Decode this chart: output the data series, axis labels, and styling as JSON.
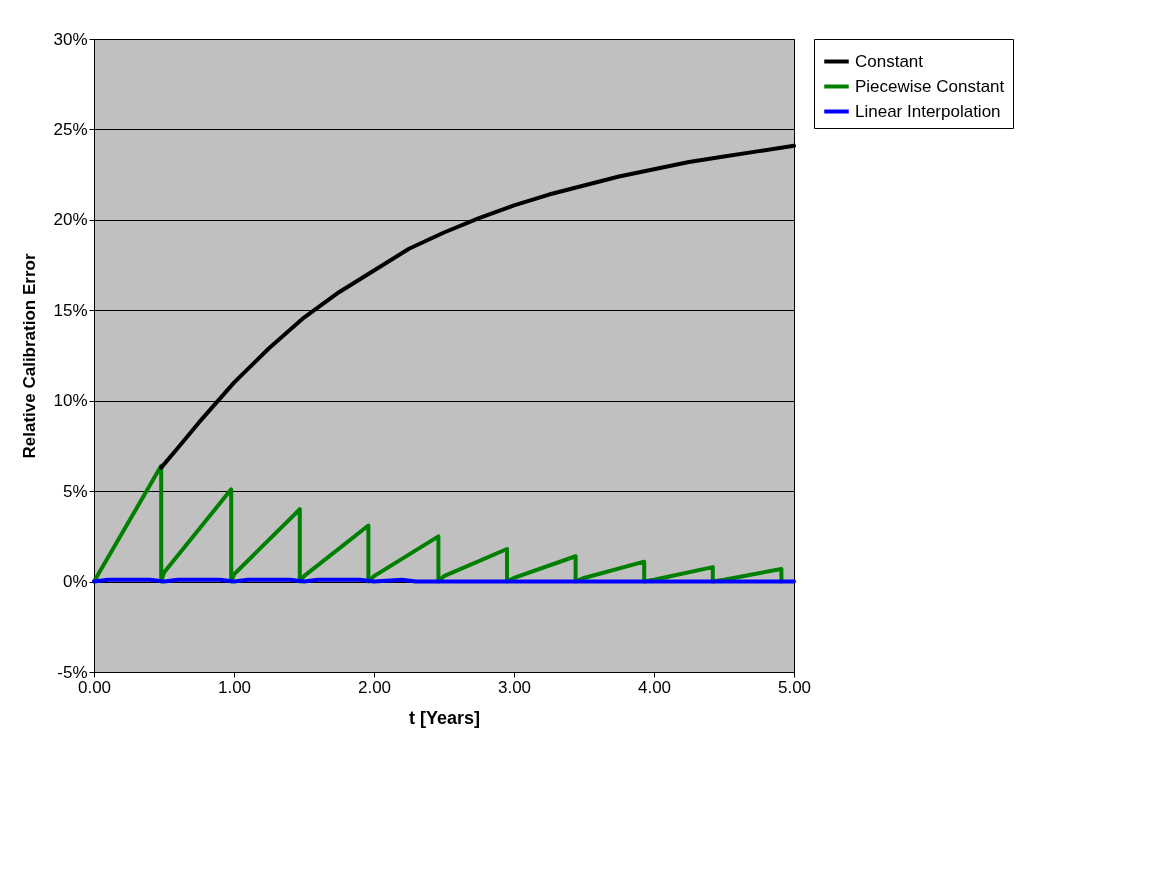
{
  "chart_data": {
    "type": "line",
    "xlabel": "t [Years]",
    "ylabel": "Relative Calibration Error",
    "xlim": [
      0,
      5
    ],
    "xticks": [
      {
        "value": 0,
        "label": "0.00"
      },
      {
        "value": 1,
        "label": "1.00"
      },
      {
        "value": 2,
        "label": "2.00"
      },
      {
        "value": 3,
        "label": "3.00"
      },
      {
        "value": 4,
        "label": "4.00"
      },
      {
        "value": 5,
        "label": "5.00"
      }
    ],
    "ylim": [
      -5,
      30
    ],
    "yticks": [
      {
        "value": -5,
        "label": "-5%"
      },
      {
        "value": 0,
        "label": "0%"
      },
      {
        "value": 5,
        "label": "5%"
      },
      {
        "value": 10,
        "label": "10%"
      },
      {
        "value": 15,
        "label": "15%"
      },
      {
        "value": 20,
        "label": "20%"
      },
      {
        "value": 25,
        "label": "25%"
      },
      {
        "value": 30,
        "label": "30%"
      }
    ],
    "grid": "y",
    "legend": "right",
    "line_style": "solid",
    "marker": "none",
    "series": [
      {
        "name": "Constant",
        "color": "#000000",
        "x": [
          0.48,
          0.6,
          0.75,
          1.0,
          1.25,
          1.5,
          1.75,
          2.0,
          2.25,
          2.5,
          2.75,
          3.0,
          3.25,
          3.5,
          3.75,
          4.0,
          4.25,
          4.5,
          4.75,
          5.0
        ],
        "values": [
          6.3,
          7.4,
          8.8,
          11.0,
          12.9,
          14.6,
          16.0,
          17.2,
          18.4,
          19.3,
          20.1,
          20.8,
          21.4,
          21.9,
          22.4,
          22.8,
          23.2,
          23.5,
          23.8,
          24.1
        ]
      },
      {
        "name": "Piecewise Constant",
        "color": "#008000",
        "x": [
          0.0,
          0.48,
          0.48,
          0.5,
          0.98,
          0.98,
          1.0,
          1.47,
          1.47,
          1.5,
          1.96,
          1.96,
          2.0,
          2.46,
          2.46,
          2.5,
          2.95,
          2.95,
          3.0,
          3.44,
          3.44,
          3.5,
          3.93,
          3.93,
          4.0,
          4.42,
          4.42,
          4.5,
          4.91,
          4.91
        ],
        "values": [
          0.0,
          6.4,
          0.0,
          0.5,
          5.1,
          0.0,
          0.4,
          4.0,
          0.0,
          0.3,
          3.1,
          0.0,
          0.3,
          2.5,
          0.0,
          0.3,
          1.8,
          0.0,
          0.2,
          1.4,
          0.0,
          0.2,
          1.1,
          0.0,
          0.1,
          0.8,
          0.0,
          0.1,
          0.7,
          0.0
        ]
      },
      {
        "name": "Linear Interpolation",
        "color": "#0000ff",
        "x": [
          0.0,
          0.1,
          0.4,
          0.5,
          0.6,
          0.9,
          1.0,
          1.1,
          1.4,
          1.5,
          1.6,
          1.9,
          2.0,
          2.2,
          2.3,
          2.5,
          5.0
        ],
        "values": [
          0.0,
          0.1,
          0.1,
          0.0,
          0.1,
          0.1,
          0.0,
          0.1,
          0.1,
          0.0,
          0.1,
          0.1,
          0.0,
          0.1,
          0.0,
          0.0,
          0.0
        ]
      }
    ]
  }
}
